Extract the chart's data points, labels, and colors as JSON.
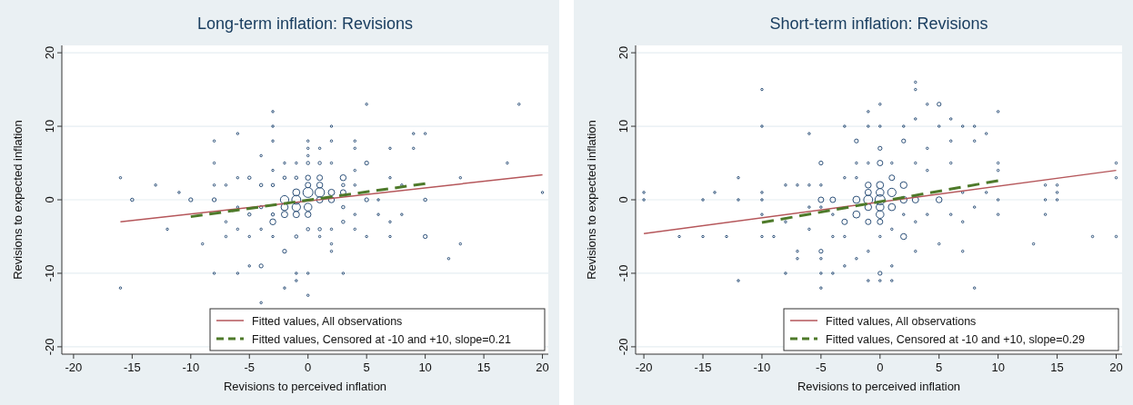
{
  "chart_data": [
    {
      "type": "bubble",
      "title": "Long-term inflation: Revisions",
      "xlabel": "Revisions to perceived inflation",
      "ylabel": "Revisions to expected inflation",
      "xlim": [
        -21,
        20.5
      ],
      "xticks": [
        -20,
        -15,
        -10,
        -5,
        0,
        5,
        10,
        15,
        20
      ],
      "ylim": [
        -21,
        21
      ],
      "yticks": [
        -20,
        -10,
        0,
        10,
        20
      ],
      "grid": "y",
      "legend": "bottom right",
      "series": [
        {
          "color": "#2b4f78",
          "marker": "circle",
          "x": [
            -16,
            -15,
            -13,
            -11,
            -10,
            -16,
            -12,
            -9,
            -8,
            -8,
            -8,
            -8,
            -8,
            -6,
            -6,
            -4,
            -4,
            -5,
            -4,
            -3,
            -3,
            -3,
            -3,
            -2,
            -2,
            -1,
            -1,
            0,
            0,
            0,
            0,
            0,
            1,
            2,
            2,
            2,
            2,
            3,
            4,
            4,
            5,
            5,
            5,
            7,
            7,
            9,
            9,
            10,
            10,
            10,
            12,
            13,
            13,
            17,
            18,
            20,
            -2,
            -1,
            0,
            1,
            0,
            -2,
            -1,
            -2,
            -1,
            0,
            1,
            2,
            2,
            3,
            3,
            -3,
            0,
            1,
            1,
            -1,
            0,
            -7,
            -7,
            -7,
            -6,
            -6,
            -6,
            -5,
            -5,
            -5,
            -4,
            -4,
            -4,
            -3,
            -3,
            -3,
            -2,
            -2,
            -1,
            -1,
            0,
            1,
            1,
            2,
            2,
            3,
            3,
            4,
            4,
            4,
            4,
            5,
            6,
            6,
            7,
            7,
            8,
            8,
            1,
            -1,
            0,
            3
          ],
          "values": [
            3,
            0,
            2,
            1,
            0,
            -12,
            -4,
            -6,
            8,
            5,
            2,
            0,
            -10,
            9,
            -10,
            6,
            -9,
            -9,
            -14,
            12,
            10,
            8,
            4,
            -7,
            -12,
            -11,
            -10,
            8,
            7,
            6,
            -10,
            -13,
            7,
            10,
            8,
            -6,
            -7,
            -10,
            8,
            7,
            13,
            5,
            0,
            7,
            -5,
            9,
            7,
            9,
            0,
            -5,
            -8,
            3,
            -6,
            5,
            13,
            1,
            0,
            0,
            1,
            1,
            -1,
            -1,
            -1,
            -2,
            -2,
            -2,
            0,
            1,
            0,
            3,
            1,
            -3,
            2,
            2,
            3,
            1,
            3,
            2,
            -3,
            -5,
            3,
            -1,
            -4,
            3,
            -2,
            -5,
            2,
            -1,
            -4,
            2,
            -2,
            -5,
            5,
            3,
            5,
            3,
            5,
            5,
            -4,
            5,
            -4,
            2,
            -3,
            4,
            2,
            -2,
            -4,
            -5,
            0,
            -2,
            3,
            -3,
            2,
            -2,
            -5,
            -5,
            -4,
            -1
          ],
          "sizes": [
            0.05,
            0.1,
            0.05,
            0.05,
            0.15,
            0.05,
            0.05,
            0.05,
            0.05,
            0.05,
            0.05,
            0.15,
            0.05,
            0.05,
            0.05,
            0.05,
            0.15,
            0.05,
            0.05,
            0.05,
            0.05,
            0.05,
            0.05,
            0.15,
            0.05,
            0.05,
            0.05,
            0.05,
            0.05,
            0.05,
            0.05,
            0.05,
            0.05,
            0.05,
            0.05,
            0.05,
            0.05,
            0.05,
            0.05,
            0.05,
            0.05,
            0.15,
            0.15,
            0.05,
            0.05,
            0.05,
            0.05,
            0.05,
            0.1,
            0.15,
            0.05,
            0.05,
            0.05,
            0.05,
            0.05,
            0.05,
            0.7,
            0.8,
            1,
            0.9,
            0.6,
            0.5,
            0.7,
            0.4,
            0.4,
            0.35,
            0.4,
            0.4,
            0.35,
            0.35,
            0.3,
            0.35,
            0.3,
            0.35,
            0.3,
            0.5,
            0.25,
            0.05,
            0.05,
            0.05,
            0.05,
            0.05,
            0.05,
            0.1,
            0.1,
            0.05,
            0.1,
            0.1,
            0.05,
            0.1,
            0.1,
            0.05,
            0.05,
            0.1,
            0.05,
            0.1,
            0.1,
            0.1,
            0.1,
            0.05,
            0.05,
            0.1,
            0.1,
            0.05,
            0.05,
            0.05,
            0.05,
            0.05,
            0.05,
            0.05,
            0.05,
            0.05,
            0.05,
            0.05,
            0.05,
            0.1,
            0.1,
            0.1
          ]
        },
        {
          "type": "line",
          "name": "Fitted values, All observations",
          "color": "#b5565a",
          "line_style": "solid",
          "x": [
            -16,
            20
          ],
          "values": [
            -3,
            3.4
          ]
        },
        {
          "type": "line",
          "name": "Fitted values, Censored at -10 and +10, slope=0.21",
          "color": "#4e7a2a",
          "line_style": "dashed",
          "x": [
            -10,
            10
          ],
          "values": [
            -2.3,
            2.2
          ]
        }
      ]
    },
    {
      "type": "bubble",
      "title": "Short-term inflation: Revisions",
      "xlabel": "Revisions to perceived inflation",
      "ylabel": "Revisions to expected inflation",
      "xlim": [
        -20.7,
        20.5
      ],
      "xticks": [
        -20,
        -15,
        -10,
        -5,
        0,
        5,
        10,
        15,
        20
      ],
      "ylim": [
        -21,
        21
      ],
      "yticks": [
        -20,
        -10,
        0,
        10,
        20
      ],
      "grid": "y",
      "legend": "bottom right",
      "series": [
        {
          "color": "#2b4f78",
          "marker": "circle",
          "x": [
            -20,
            -20,
            -17,
            -15,
            -15,
            -14,
            -13,
            -12,
            -12,
            -12,
            -10,
            -10,
            -10,
            -10,
            -10,
            -10,
            -9,
            -8,
            -8,
            -8,
            -7,
            -7,
            -7,
            -6,
            -6,
            -5,
            -5,
            -5,
            -5,
            -5,
            -4,
            -3,
            -3,
            -2,
            -2,
            -1,
            -1,
            -1,
            0,
            0,
            0,
            0,
            0,
            1,
            1,
            2,
            2,
            3,
            3,
            3,
            3,
            4,
            4,
            5,
            5,
            5,
            6,
            6,
            7,
            7,
            8,
            8,
            8,
            9,
            10,
            10,
            10,
            10,
            10,
            13,
            14,
            14,
            14,
            15,
            15,
            15,
            18,
            20,
            20,
            20,
            0,
            -1,
            1,
            0,
            0,
            -2,
            -2,
            0,
            0,
            1,
            2,
            2,
            3,
            5,
            -1,
            -1,
            -1,
            2,
            -3,
            -4,
            0,
            -5,
            -1,
            0,
            1,
            -6,
            -6,
            -5,
            -5,
            -4,
            -4,
            -3,
            -3,
            -2,
            -2,
            -1,
            -1,
            0,
            1,
            1,
            2,
            3,
            3,
            4,
            4,
            6,
            6,
            7,
            7,
            8,
            9
          ],
          "values": [
            1,
            0,
            -5,
            0,
            -5,
            1,
            -5,
            3,
            0,
            -11,
            15,
            10,
            1,
            0,
            -2,
            -5,
            -5,
            2,
            -3,
            -10,
            2,
            -7,
            -8,
            9,
            -4,
            5,
            -7,
            -8,
            -10,
            -12,
            -10,
            10,
            -9,
            8,
            -8,
            12,
            10,
            -11,
            13,
            10,
            7,
            -10,
            -11,
            -9,
            -11,
            10,
            8,
            16,
            15,
            11,
            -7,
            13,
            7,
            13,
            10,
            -6,
            11,
            8,
            10,
            -7,
            10,
            8,
            -12,
            9,
            12,
            5,
            4,
            0,
            -2,
            -6,
            2,
            0,
            -2,
            2,
            1,
            0,
            -5,
            5,
            3,
            -5,
            0,
            0,
            1,
            1,
            2,
            0,
            -2,
            -2,
            -1,
            -1,
            2,
            0,
            0,
            0,
            -1,
            1,
            2,
            -5,
            -3,
            0,
            5,
            0,
            -3,
            -3,
            3,
            2,
            -1,
            2,
            -1,
            -2,
            -5,
            3,
            -5,
            5,
            3,
            5,
            -7,
            -5,
            5,
            -4,
            -2,
            5,
            -3,
            4,
            -2,
            5,
            -2,
            1,
            -3,
            -1,
            1
          ],
          "sizes": [
            0.05,
            0.05,
            0.05,
            0.05,
            0.05,
            0.05,
            0.05,
            0.05,
            0.05,
            0.05,
            0.05,
            0.05,
            0.05,
            0.05,
            0.05,
            0.05,
            0.05,
            0.05,
            0.05,
            0.05,
            0.05,
            0.05,
            0.05,
            0.05,
            0.05,
            0.15,
            0.15,
            0.05,
            0.05,
            0.05,
            0.05,
            0.05,
            0.05,
            0.15,
            0.05,
            0.05,
            0.05,
            0.05,
            0.05,
            0.05,
            0.15,
            0.15,
            0.05,
            0.05,
            0.05,
            0.05,
            0.15,
            0.05,
            0.05,
            0.05,
            0.05,
            0.05,
            0.05,
            0.15,
            0.05,
            0.05,
            0.05,
            0.05,
            0.05,
            0.05,
            0.05,
            0.05,
            0.05,
            0.05,
            0.05,
            0.05,
            0.05,
            0.05,
            0.05,
            0.05,
            0.05,
            0.05,
            0.05,
            0.05,
            0.05,
            0.05,
            0.05,
            0.05,
            0.05,
            0.05,
            1,
            0.8,
            0.7,
            0.6,
            0.5,
            0.5,
            0.5,
            0.6,
            0.6,
            0.5,
            0.45,
            0.45,
            0.4,
            0.35,
            0.45,
            0.4,
            0.35,
            0.35,
            0.3,
            0.3,
            0.3,
            0.3,
            0.3,
            0.3,
            0.3,
            0.05,
            0.05,
            0.05,
            0.05,
            0.05,
            0.05,
            0.05,
            0.05,
            0.05,
            0.05,
            0.05,
            0.05,
            0.05,
            0.05,
            0.05,
            0.05,
            0.05,
            0.05,
            0.05,
            0.05,
            0.05,
            0.05,
            0.05,
            0.05,
            0.05,
            0.05
          ]
        },
        {
          "type": "line",
          "name": "Fitted values, All observations",
          "color": "#b5565a",
          "line_style": "solid",
          "x": [
            -20,
            20
          ],
          "values": [
            -4.6,
            4
          ]
        },
        {
          "type": "line",
          "name": "Fitted values, Censored at -10 and +10, slope=0.29",
          "color": "#4e7a2a",
          "line_style": "dashed",
          "x": [
            -10,
            10
          ],
          "values": [
            -3.1,
            2.6
          ]
        }
      ]
    }
  ]
}
